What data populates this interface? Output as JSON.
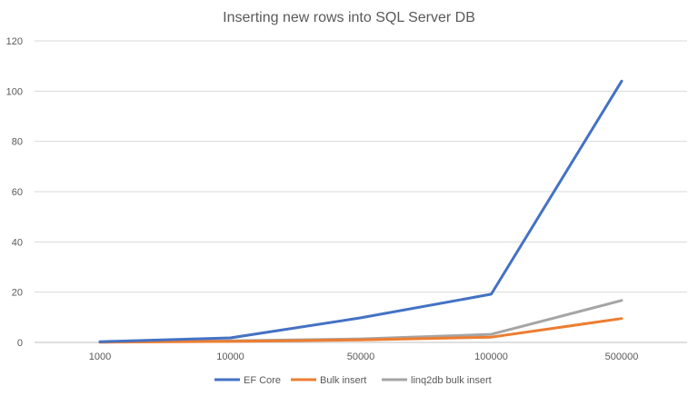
{
  "chart_data": {
    "type": "line",
    "title": "Inserting new rows into SQL Server DB",
    "xlabel": "",
    "ylabel": "",
    "categories": [
      "1000",
      "10000",
      "50000",
      "100000",
      "500000"
    ],
    "ylim": [
      0,
      120
    ],
    "yticks": [
      0,
      20,
      40,
      60,
      80,
      100,
      120
    ],
    "grid": true,
    "legend_position": "bottom",
    "series": [
      {
        "name": "EF Core",
        "color": "#4472C4",
        "values": [
          0.3,
          1.8,
          9.8,
          19.2,
          104
        ]
      },
      {
        "name": "Bulk insert",
        "color": "#ED7D31",
        "values": [
          0.1,
          0.4,
          1.0,
          2.1,
          9.5
        ]
      },
      {
        "name": "linq2db bulk insert",
        "color": "#A5A5A5",
        "values": [
          0.1,
          0.6,
          1.4,
          3.2,
          16.7
        ]
      }
    ]
  }
}
